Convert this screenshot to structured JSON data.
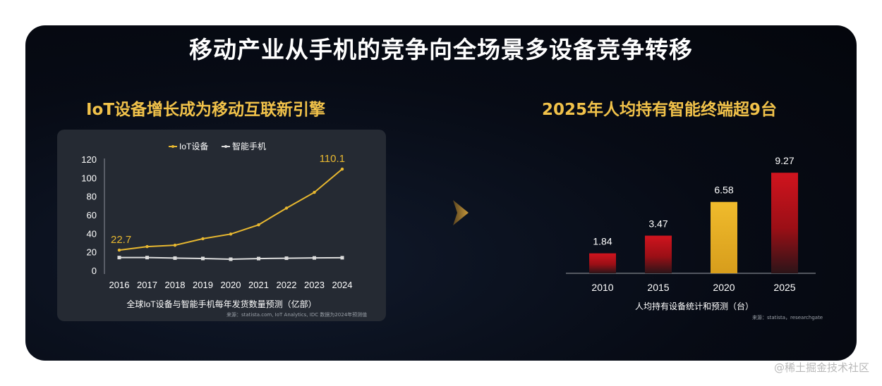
{
  "main_title": "移动产业从手机的竞争向全场景多设备竞争转移",
  "left": {
    "subtitle": "IoT设备增长成为移动互联新引擎",
    "source": "来源：statista.com, IoT Analytics, IDC 数据为2024年预测值"
  },
  "right": {
    "subtitle": "2025年人均持有智能终端超9台",
    "source": "来源：statista，researchgate"
  },
  "watermark": "@稀土掘金技术社区",
  "colors": {
    "accent": "#f1c24a",
    "iot_line": "#e8b830",
    "phone_line": "#dcdcdc",
    "bar_red": "#c8141c",
    "bar_gold": "#e8b228"
  },
  "chart_data": [
    {
      "type": "line",
      "xlabel": "全球IoT设备与智能手机每年发货数量预测（亿部）",
      "x": [
        "2016",
        "2017",
        "2018",
        "2019",
        "2020",
        "2021",
        "2022",
        "2023",
        "2024"
      ],
      "ylim": [
        0,
        120
      ],
      "yticks": [
        0,
        20,
        40,
        60,
        80,
        100,
        120
      ],
      "grid": false,
      "legend_position": "top",
      "series": [
        {
          "name": "IoT设备",
          "values": [
            22.7,
            26.5,
            28,
            35,
            40,
            50,
            68,
            85,
            110.1
          ]
        },
        {
          "name": "智能手机",
          "values": [
            14.7,
            14.7,
            14.1,
            13.7,
            12.9,
            13.6,
            14,
            14.3,
            14.5
          ]
        }
      ],
      "data_labels": [
        {
          "series": "IoT设备",
          "x": "2016",
          "text": "22.7"
        },
        {
          "series": "IoT设备",
          "x": "2024",
          "text": "110.1"
        }
      ]
    },
    {
      "type": "bar",
      "xlabel": "人均持有设备统计和预测（台）",
      "categories": [
        "2010",
        "2015",
        "2020",
        "2025"
      ],
      "values": [
        1.84,
        3.47,
        6.58,
        9.27
      ],
      "value_labels": [
        "1.84",
        "3.47",
        "6.58",
        "9.27"
      ],
      "ylim": [
        0,
        10
      ]
    }
  ]
}
